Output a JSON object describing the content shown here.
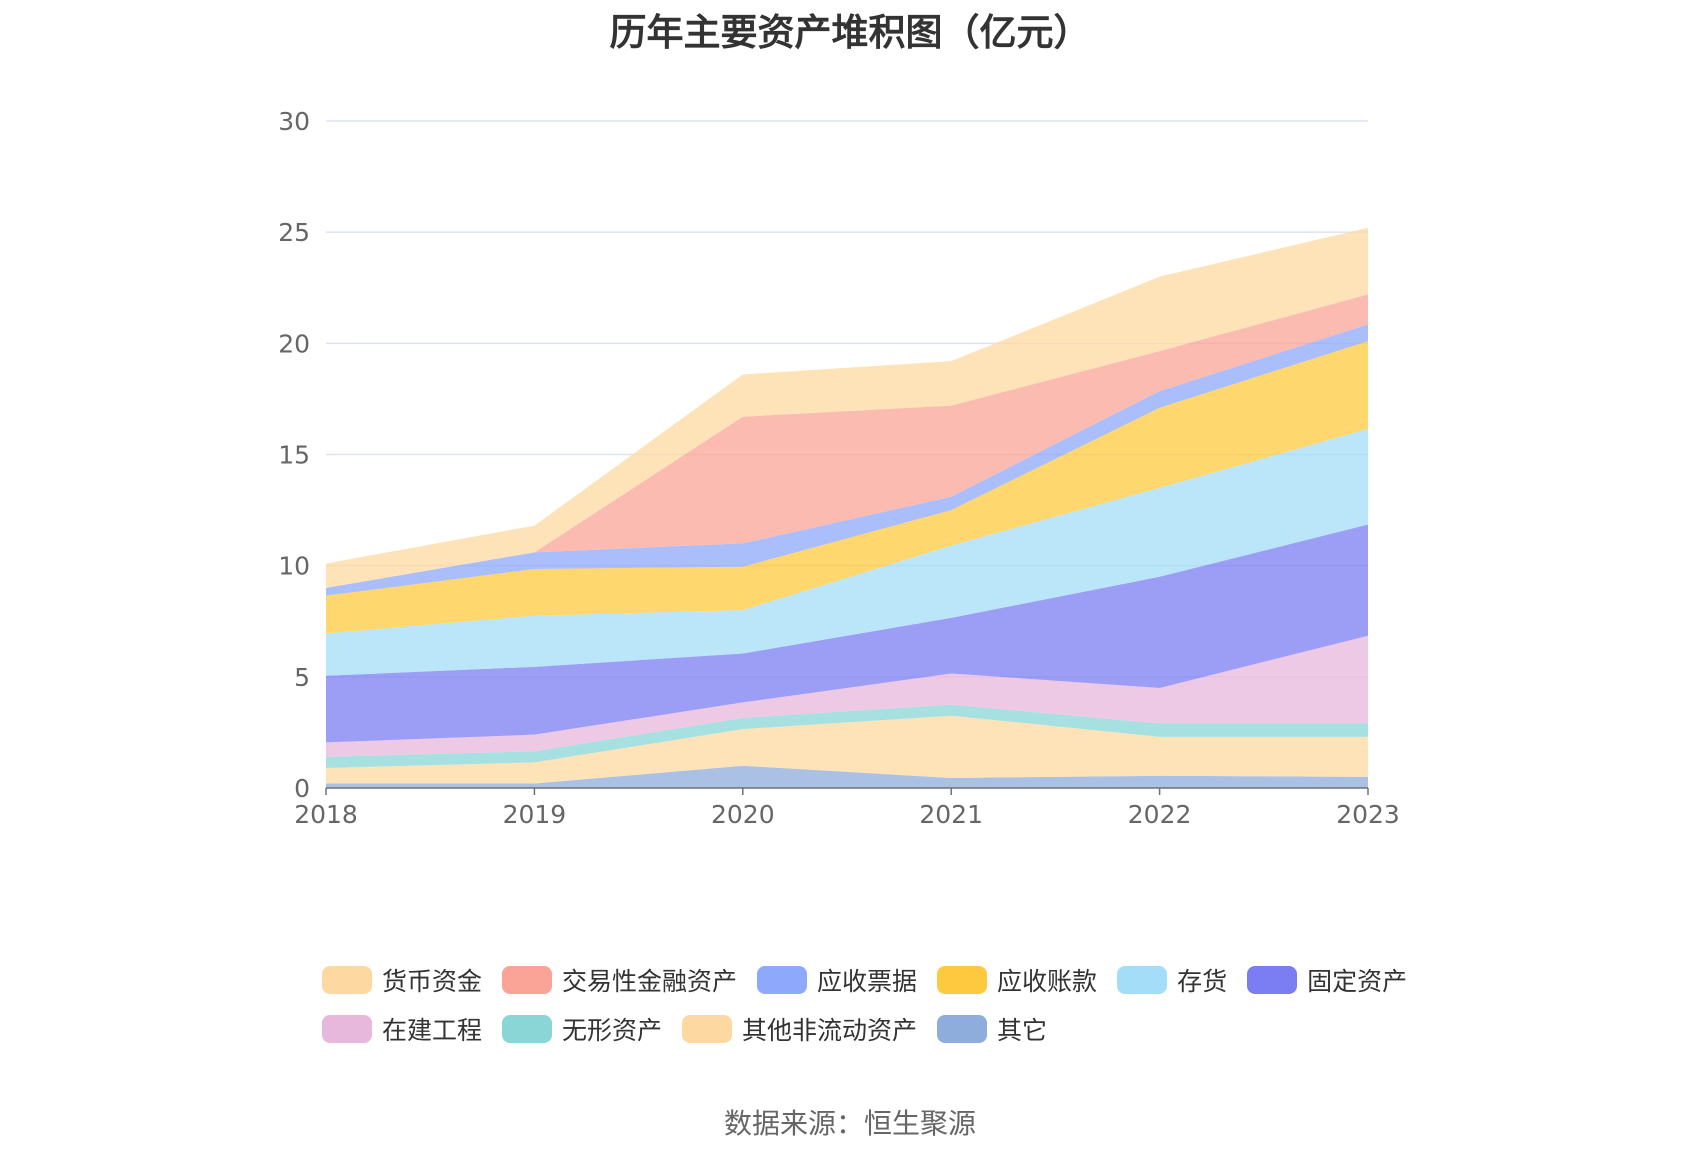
{
  "chart_data": {
    "type": "area",
    "stacked": true,
    "title": "历年主要资产堆积图（亿元）",
    "x": [
      "2018",
      "2019",
      "2020",
      "2021",
      "2022",
      "2023"
    ],
    "ylim": [
      0,
      30
    ],
    "yticks": [
      0,
      5,
      10,
      15,
      20,
      25,
      30
    ],
    "grid": true,
    "legend_position": "bottom",
    "series": [
      {
        "name": "其它",
        "color": "#8eacdc",
        "values": [
          0.2,
          0.2,
          1.0,
          0.45,
          0.55,
          0.5
        ]
      },
      {
        "name": "其他非流动资产",
        "color": "#fdd9a1",
        "values": [
          0.7,
          0.95,
          1.65,
          2.8,
          1.75,
          1.8
        ]
      },
      {
        "name": "无形资产",
        "color": "#8ad6d6",
        "values": [
          0.5,
          0.5,
          0.5,
          0.5,
          0.6,
          0.6
        ]
      },
      {
        "name": "在建工程",
        "color": "#e8b7dc",
        "values": [
          0.65,
          0.75,
          0.7,
          1.4,
          1.6,
          3.95
        ]
      },
      {
        "name": "固定资产",
        "color": "#7b7ef2",
        "values": [
          3.0,
          3.05,
          2.2,
          2.5,
          5.0,
          5.0
        ]
      },
      {
        "name": "存货",
        "color": "#a4ddf7",
        "values": [
          1.9,
          2.3,
          1.95,
          3.25,
          4.0,
          4.3
        ]
      },
      {
        "name": "应收账款",
        "color": "#fec93f",
        "values": [
          1.7,
          2.1,
          1.95,
          1.6,
          3.6,
          3.95
        ]
      },
      {
        "name": "应收票据",
        "color": "#8ea8fb",
        "values": [
          0.35,
          0.75,
          1.05,
          0.6,
          0.75,
          0.75
        ]
      },
      {
        "name": "交易性金融资产",
        "color": "#f9a497",
        "values": [
          0.0,
          0.0,
          5.7,
          4.1,
          1.8,
          1.35
        ]
      },
      {
        "name": "货币资金",
        "color": "#fdd9a1",
        "values": [
          1.1,
          1.2,
          1.9,
          2.0,
          3.35,
          3.0
        ]
      }
    ]
  },
  "legend": {
    "rows": [
      [
        {
          "label": "货币资金",
          "color": "#fdd9a1"
        },
        {
          "label": "交易性金融资产",
          "color": "#f9a497"
        },
        {
          "label": "应收票据",
          "color": "#8ea8fb"
        },
        {
          "label": "应收账款",
          "color": "#fec93f"
        },
        {
          "label": "存货",
          "color": "#a4ddf7"
        },
        {
          "label": "固定资产",
          "color": "#7b7ef2"
        }
      ],
      [
        {
          "label": "在建工程",
          "color": "#e8b7dc"
        },
        {
          "label": "无形资产",
          "color": "#8ad6d6"
        },
        {
          "label": "其他非流动资产",
          "color": "#fdd9a1"
        },
        {
          "label": "其它",
          "color": "#8eacdc"
        }
      ]
    ]
  },
  "source": "数据来源：恒生聚源"
}
